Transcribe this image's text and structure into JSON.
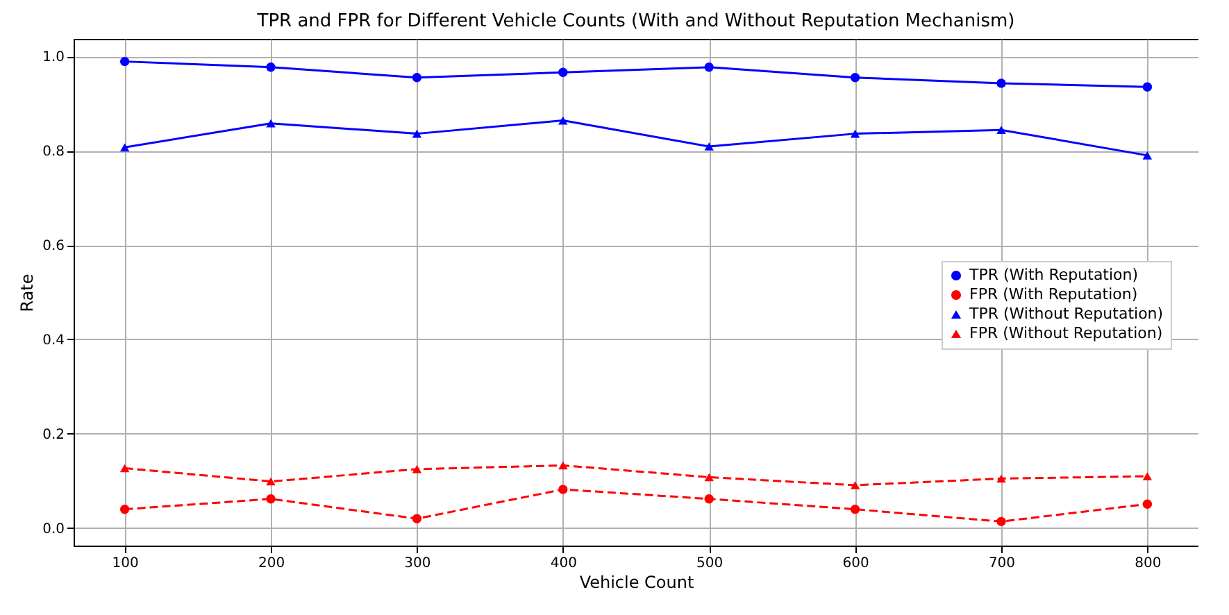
{
  "chart_data": {
    "type": "line",
    "title": "TPR and FPR for Different Vehicle Counts (With and Without Reputation Mechanism)",
    "xlabel": "Vehicle Count",
    "ylabel": "Rate",
    "x": [
      100,
      200,
      300,
      400,
      500,
      600,
      700,
      800
    ],
    "series": [
      {
        "name": "TPR (With Reputation)",
        "color": "#0000ff",
        "marker": "circle",
        "line_style": "solid",
        "values": [
          0.989,
          0.977,
          0.955,
          0.966,
          0.977,
          0.955,
          0.943,
          0.935
        ]
      },
      {
        "name": "FPR (With Reputation)",
        "color": "#ff0000",
        "marker": "circle",
        "line_style": "dashed",
        "values": [
          0.04,
          0.062,
          0.02,
          0.082,
          0.062,
          0.04,
          0.014,
          0.051
        ]
      },
      {
        "name": "TPR (Without Reputation)",
        "color": "#0000ff",
        "marker": "triangle",
        "line_style": "solid",
        "values": [
          0.807,
          0.858,
          0.836,
          0.864,
          0.809,
          0.836,
          0.844,
          0.79
        ]
      },
      {
        "name": "FPR (Without Reputation)",
        "color": "#ff0000",
        "marker": "triangle",
        "line_style": "dashed",
        "values": [
          0.127,
          0.099,
          0.125,
          0.133,
          0.108,
          0.091,
          0.105,
          0.11
        ]
      }
    ],
    "xlim": [
      65,
      835
    ],
    "xticks": [
      100,
      200,
      300,
      400,
      500,
      600,
      700,
      800
    ],
    "ylim": [
      -0.037,
      1.037
    ],
    "yticks": [
      {
        "value": 0,
        "label": "0.0"
      },
      {
        "value": 0.2,
        "label": "0.2"
      },
      {
        "value": 0.4,
        "label": "0.4"
      },
      {
        "value": 0.6,
        "label": "0.6"
      },
      {
        "value": 0.8,
        "label": "0.8"
      },
      {
        "value": 1,
        "label": "1.0"
      }
    ],
    "grid": true,
    "legend": "right"
  }
}
